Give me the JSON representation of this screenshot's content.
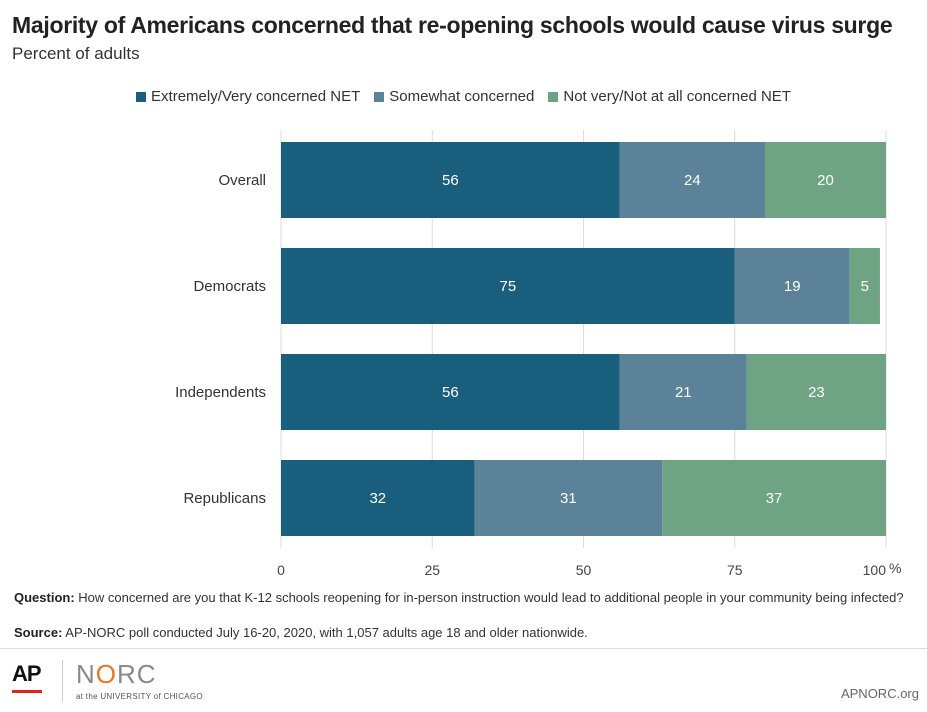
{
  "title": "Majority of Americans concerned that re-opening schools would cause virus surge",
  "subtitle": "Percent of adults",
  "chart_data": {
    "type": "bar",
    "orientation": "horizontal",
    "stacked": true,
    "categories": [
      "Overall",
      "Democrats",
      "Independents",
      "Republicans"
    ],
    "series": [
      {
        "name": "Extremely/Very concerned NET",
        "values": [
          56,
          75,
          56,
          32
        ],
        "color": "#195e7d"
      },
      {
        "name": "Somewhat concerned",
        "values": [
          24,
          19,
          21,
          31
        ],
        "color": "#5b8299"
      },
      {
        "name": "Not very/Not at all concerned NET",
        "values": [
          20,
          5,
          23,
          37
        ],
        "color": "#6ea384"
      }
    ],
    "xlim": [
      0,
      100
    ],
    "xticks": [
      0,
      25,
      50,
      75,
      100
    ],
    "tick_labels": [
      "0",
      "25",
      "50",
      "75",
      "100"
    ],
    "x_unit": "%",
    "grid": true,
    "legend_position": "top-center"
  },
  "notes": {
    "question_label": "Question:",
    "question_text": " How concerned are you that K-12 schools reopening for in-person instruction would lead to additional people in your community being infected?",
    "source_label": "Source:",
    "source_text": " AP-NORC poll conducted July 16-20, 2020, with 1,057 adults age 18 and older nationwide."
  },
  "footer": {
    "ap_logo_text": "AP",
    "norc_logo_text": "NORC",
    "norc_sub_text": "at the UNIVERSITY of CHICAGO",
    "site": "APNORC.org"
  }
}
